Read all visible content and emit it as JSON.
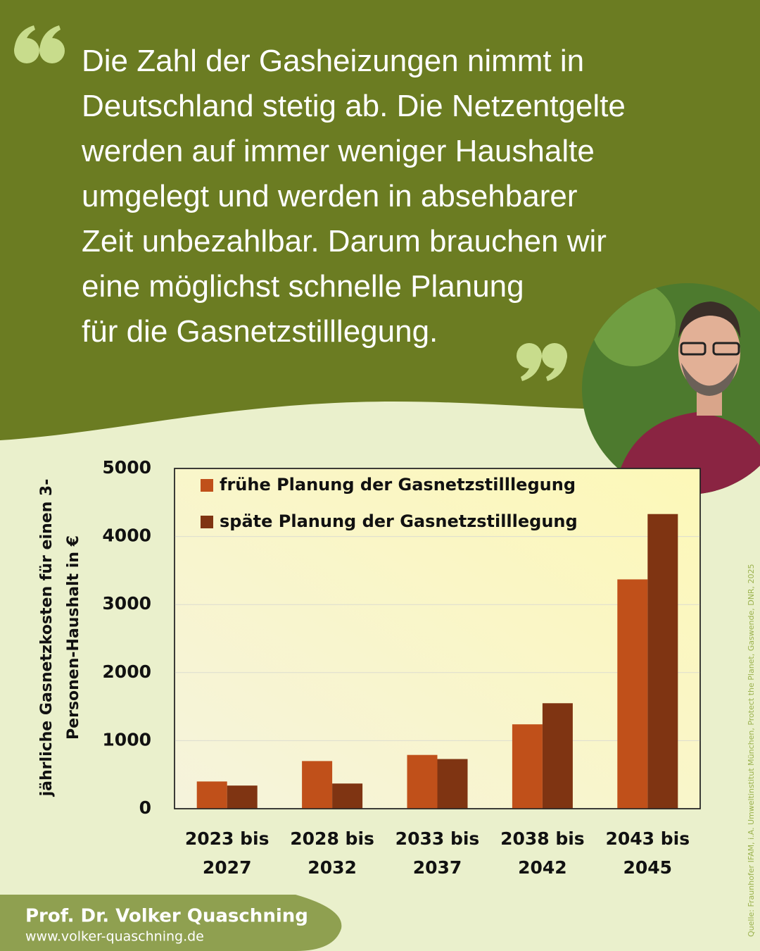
{
  "quote_lines": [
    "Die Zahl der Gasheizungen nimmt in",
    "Deutschland stetig ab. Die Netzentgelte",
    "werden auf immer weniger Haushalte",
    "umgelegt und werden in absehbarer",
    "Zeit unbezahlbar. Darum brauchen wir",
    "eine möglichst schnelle Planung",
    "für die Gasnetzstilllegung."
  ],
  "chart_data": {
    "type": "bar",
    "y_label": "jährliche Gasnetzkosten für einen 3-Personen-Haushalt in €",
    "categories": [
      "2023 bis 2027",
      "2028 bis 2032",
      "2033 bis 2037",
      "2038 bis 2042",
      "2043 bis 2045"
    ],
    "series": [
      {
        "name": "frühe Planung der Gasnetzstilllegung",
        "color": "#c0501a",
        "values": [
          400,
          700,
          790,
          1240,
          3370
        ]
      },
      {
        "name": "späte Planung der Gasnetzstilllegung",
        "color": "#7f3412",
        "values": [
          340,
          370,
          730,
          1550,
          4330
        ]
      }
    ],
    "ylim": [
      0,
      5000
    ],
    "yticks": [
      0,
      1000,
      2000,
      3000,
      4000,
      5000
    ],
    "grid": true,
    "legend": "top-left"
  },
  "author": "Prof. Dr. Volker Quaschning",
  "website": "www.volker-quaschning.de",
  "source": "Quelle: Fraunhofer IFAM, i.A. Umweltinstitut München, Protect the Planet, Gaswende, DNR, 2025"
}
